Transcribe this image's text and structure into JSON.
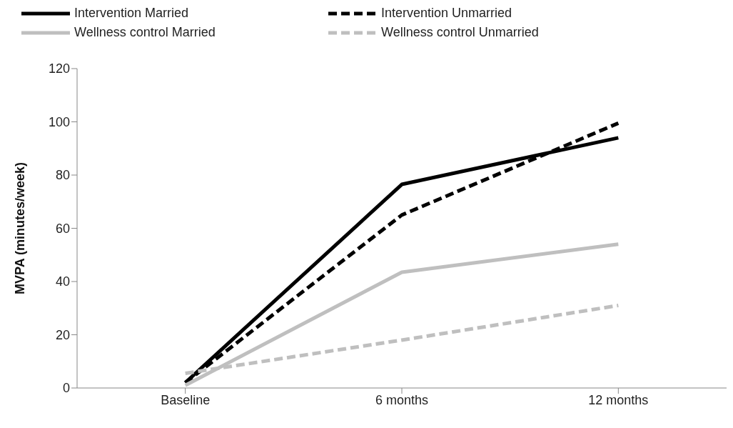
{
  "chart_data": {
    "type": "line",
    "ylabel": "MVPA (minutes/week)",
    "categories": [
      "Baseline",
      "6 months",
      "12 months"
    ],
    "series": [
      {
        "name": "Intervention Married",
        "color": "#000000",
        "line_style": "solid",
        "values": [
          2,
          76.5,
          94
        ]
      },
      {
        "name": "Intervention Unmarried",
        "color": "#000000",
        "line_style": "dashed",
        "values": [
          2,
          65,
          99.5
        ]
      },
      {
        "name": "Wellness control Married",
        "color": "#bfbfbf",
        "line_style": "solid",
        "values": [
          1,
          43.5,
          54
        ]
      },
      {
        "name": "Wellness control Unmarried",
        "color": "#bfbfbf",
        "line_style": "dashed",
        "values": [
          5.5,
          18,
          31
        ]
      }
    ],
    "ylim": [
      0,
      120
    ],
    "yticks": [
      0,
      20,
      40,
      60,
      80,
      100,
      120
    ],
    "grid": false,
    "legend": "top left",
    "marker": "none"
  }
}
